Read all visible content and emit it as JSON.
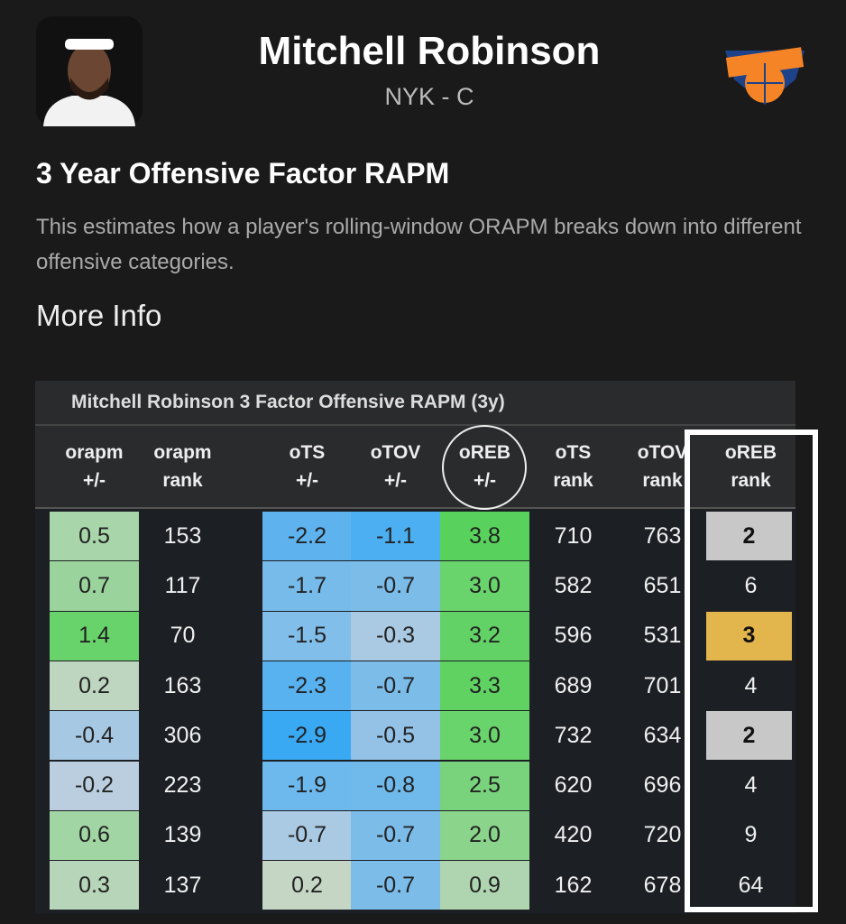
{
  "header": {
    "name": "Mitchell Robinson",
    "subtitle": "NYK - C"
  },
  "section": {
    "title": "3 Year Offensive Factor RAPM",
    "description": "This estimates how a player's rolling-window ORAPM breaks down into different offensive categories.",
    "link": "More Info"
  },
  "table": {
    "title": "Mitchell Robinson 3 Factor Offensive RAPM (3y)",
    "columns": [
      [
        "orapm",
        "+/-"
      ],
      [
        "orapm",
        "rank"
      ],
      [
        "oTS",
        "+/-"
      ],
      [
        "oTOV",
        "+/-"
      ],
      [
        "oREB",
        "+/-"
      ],
      [
        "oTS",
        "rank"
      ],
      [
        "oTOV",
        "rank"
      ],
      [
        "oREB",
        "rank"
      ]
    ],
    "rows": [
      [
        "0.5",
        "153",
        "-2.2",
        "-1.1",
        "3.8",
        "710",
        "763",
        "2"
      ],
      [
        "0.7",
        "117",
        "-1.7",
        "-0.7",
        "3.0",
        "582",
        "651",
        "6"
      ],
      [
        "1.4",
        "70",
        "-1.5",
        "-0.3",
        "3.2",
        "596",
        "531",
        "3"
      ],
      [
        "0.2",
        "163",
        "-2.3",
        "-0.7",
        "3.3",
        "689",
        "701",
        "4"
      ],
      [
        "-0.4",
        "306",
        "-2.9",
        "-0.5",
        "3.0",
        "732",
        "634",
        "2"
      ],
      [
        "-0.2",
        "223",
        "-1.9",
        "-0.8",
        "2.5",
        "620",
        "696",
        "4"
      ],
      [
        "0.6",
        "139",
        "-0.7",
        "-0.7",
        "2.0",
        "420",
        "720",
        "9"
      ],
      [
        "0.3",
        "137",
        "0.2",
        "-0.7",
        "0.9",
        "162",
        "678",
        "64"
      ]
    ]
  }
}
